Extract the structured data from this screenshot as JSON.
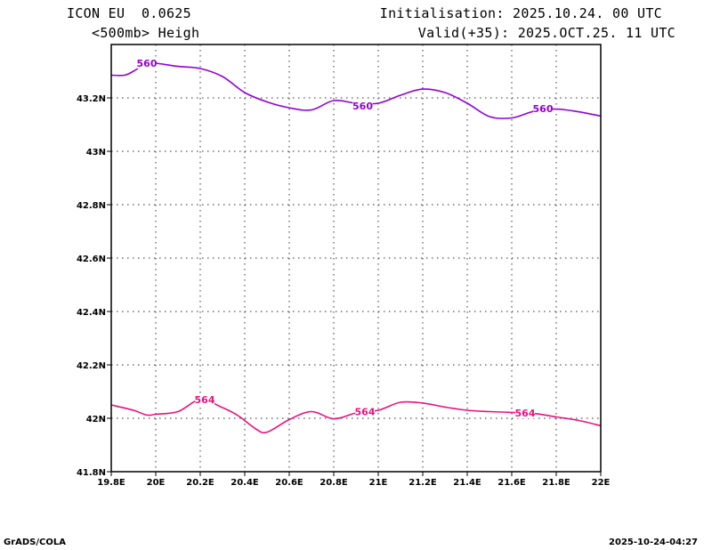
{
  "header": {
    "model": "ICON EU  0.0625",
    "field": "<500mb> Heigh",
    "init": "Initialisation: 2025.10.24. 00 UTC",
    "valid": "Valid(+35): 2025.OCT.25. 11 UTC"
  },
  "footer": {
    "left": "GrADS/COLA",
    "right": "2025-10-24-04:27"
  },
  "chart_data": {
    "type": "contour",
    "x_ticks": [
      "19.8E",
      "20E",
      "20.2E",
      "20.4E",
      "20.6E",
      "20.8E",
      "21E",
      "21.2E",
      "21.4E",
      "21.6E",
      "21.8E",
      "22E"
    ],
    "y_ticks": [
      "41.8N",
      "42N",
      "42.2N",
      "42.4N",
      "42.6N",
      "42.8N",
      "43N",
      "43.2N"
    ],
    "xlim": [
      19.8,
      22.0
    ],
    "ylim": [
      41.8,
      43.4
    ],
    "grid": true,
    "contours": [
      {
        "label": "560",
        "color": "#9400d3",
        "label_positions": [
          [
            19.96,
            43.33
          ],
          [
            20.93,
            43.17
          ],
          [
            21.74,
            43.16
          ]
        ],
        "points": [
          [
            19.8,
            43.285
          ],
          [
            19.86,
            43.285
          ],
          [
            19.9,
            43.3
          ],
          [
            19.96,
            43.33
          ],
          [
            20.0,
            43.33
          ],
          [
            20.1,
            43.318
          ],
          [
            20.2,
            43.31
          ],
          [
            20.3,
            43.28
          ],
          [
            20.4,
            43.22
          ],
          [
            20.5,
            43.185
          ],
          [
            20.6,
            43.163
          ],
          [
            20.7,
            43.155
          ],
          [
            20.8,
            43.19
          ],
          [
            20.9,
            43.18
          ],
          [
            21.0,
            43.18
          ],
          [
            21.1,
            43.21
          ],
          [
            21.2,
            43.233
          ],
          [
            21.3,
            43.22
          ],
          [
            21.4,
            43.18
          ],
          [
            21.5,
            43.13
          ],
          [
            21.6,
            43.125
          ],
          [
            21.7,
            43.15
          ],
          [
            21.8,
            43.158
          ],
          [
            21.9,
            43.148
          ],
          [
            22.0,
            43.132
          ]
        ]
      },
      {
        "label": "564",
        "color": "#e8127d",
        "label_positions": [
          [
            20.22,
            42.07
          ],
          [
            20.94,
            42.025
          ],
          [
            21.66,
            42.02
          ]
        ],
        "points": [
          [
            19.8,
            42.05
          ],
          [
            19.9,
            42.03
          ],
          [
            19.96,
            42.012
          ],
          [
            20.0,
            42.015
          ],
          [
            20.1,
            42.025
          ],
          [
            20.2,
            42.07
          ],
          [
            20.3,
            42.04
          ],
          [
            20.37,
            42.01
          ],
          [
            20.45,
            41.96
          ],
          [
            20.5,
            41.948
          ],
          [
            20.6,
            41.995
          ],
          [
            20.7,
            42.025
          ],
          [
            20.8,
            41.998
          ],
          [
            20.9,
            42.02
          ],
          [
            21.0,
            42.03
          ],
          [
            21.1,
            42.06
          ],
          [
            21.2,
            42.057
          ],
          [
            21.3,
            42.042
          ],
          [
            21.4,
            42.03
          ],
          [
            21.5,
            42.025
          ],
          [
            21.6,
            42.022
          ],
          [
            21.7,
            42.018
          ],
          [
            21.8,
            42.005
          ],
          [
            21.9,
            41.992
          ],
          [
            22.0,
            41.972
          ]
        ]
      }
    ]
  }
}
